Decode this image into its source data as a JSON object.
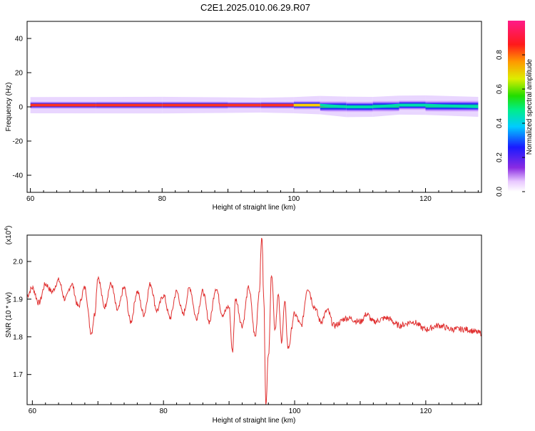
{
  "title": "C2E1.2025.010.06.29.R07",
  "colors": {
    "snr_line": "#e03030",
    "axes": "#000000",
    "background": "#ffffff"
  },
  "chart_data": [
    {
      "type": "heatmap",
      "xlabel": "Height of straight line (km)",
      "ylabel": "Frequency (Hz)",
      "xlim": [
        59.5,
        128.5
      ],
      "ylim": [
        -50,
        50
      ],
      "x_ticks": [
        60,
        80,
        100,
        120
      ],
      "y_ticks": [
        -40,
        -20,
        0,
        20,
        40
      ],
      "colorbar": {
        "label": "Normalized spectral amplitude",
        "range": [
          0,
          1
        ],
        "ticks": [
          0.0,
          0.2,
          0.4,
          0.6,
          0.8
        ],
        "tick_labels": [
          "0.0",
          "0.2",
          "0.4",
          "0.6",
          "0.8"
        ],
        "colormap": "rainbow (white-purple-blue-cyan-green-yellow-orange-red-magenta)"
      },
      "band": [
        {
          "x": 60,
          "center_hz": 1,
          "peak": 0.82
        },
        {
          "x": 70,
          "center_hz": 1,
          "peak": 0.8
        },
        {
          "x": 80,
          "center_hz": 1,
          "peak": 0.78
        },
        {
          "x": 90,
          "center_hz": 1,
          "peak": 0.88
        },
        {
          "x": 95,
          "center_hz": 1,
          "peak": 0.95
        },
        {
          "x": 100,
          "center_hz": 1,
          "peak": 0.82
        },
        {
          "x": 104,
          "center_hz": 1,
          "peak": 0.6
        },
        {
          "x": 108,
          "center_hz": 0,
          "peak": 0.4
        },
        {
          "x": 112,
          "center_hz": 0,
          "peak": 0.45
        },
        {
          "x": 116,
          "center_hz": 1,
          "peak": 0.55
        },
        {
          "x": 120,
          "center_hz": 1,
          "peak": 0.5
        },
        {
          "x": 128,
          "center_hz": 0,
          "peak": 0.45
        }
      ]
    },
    {
      "type": "line",
      "xlabel": "Height of straight line (km)",
      "ylabel": "SNR (10 * v/v)",
      "y_multiplier_label": "(x10",
      "y_multiplier_exp": "4",
      "y_multiplier_close": ")",
      "xlim": [
        59.2,
        128.5
      ],
      "ylim": [
        1.62,
        2.07
      ],
      "x_ticks": [
        60,
        80,
        100,
        120
      ],
      "y_ticks": [
        1.7,
        1.8,
        1.9,
        2.0
      ],
      "series": [
        {
          "x": [
            59.2,
            60,
            61,
            62,
            63,
            64,
            65,
            66,
            67,
            68,
            69,
            69.5,
            70,
            71,
            72,
            73,
            74,
            75,
            76,
            77,
            78,
            79,
            80,
            81,
            82,
            83,
            84,
            85,
            86,
            87,
            88,
            89,
            90,
            90.5,
            91,
            92,
            93,
            94,
            94.6,
            95,
            95.3,
            95.6,
            96,
            96.5,
            97,
            97.5,
            98,
            98.5,
            99,
            100,
            101,
            102,
            103,
            104,
            105,
            106,
            108,
            110,
            111,
            112,
            114,
            116,
            118,
            120,
            122,
            124,
            126,
            128.5
          ],
          "y": [
            1.91,
            1.93,
            1.89,
            1.94,
            1.92,
            1.95,
            1.9,
            1.94,
            1.88,
            1.93,
            1.81,
            1.86,
            1.96,
            1.88,
            1.94,
            1.87,
            1.93,
            1.84,
            1.92,
            1.86,
            1.94,
            1.87,
            1.91,
            1.85,
            1.92,
            1.86,
            1.93,
            1.85,
            1.92,
            1.84,
            1.93,
            1.86,
            1.88,
            1.76,
            1.9,
            1.83,
            1.93,
            1.8,
            1.92,
            2.07,
            1.9,
            1.62,
            1.75,
            1.97,
            1.82,
            1.91,
            1.79,
            1.89,
            1.77,
            1.86,
            1.83,
            1.93,
            1.88,
            1.84,
            1.87,
            1.83,
            1.85,
            1.84,
            1.86,
            1.84,
            1.85,
            1.83,
            1.84,
            1.82,
            1.83,
            1.82,
            1.82,
            1.81
          ],
          "noise": 0.008
        }
      ]
    }
  ]
}
